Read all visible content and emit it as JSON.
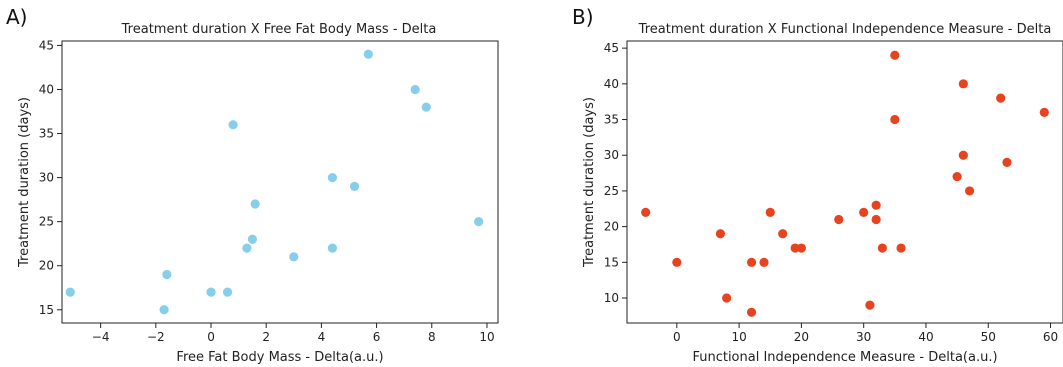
{
  "chart_data": [
    {
      "panel_label": "A)",
      "type": "scatter",
      "title": "Treatment duration X Free Fat Body Mass - Delta",
      "xlabel": "Free Fat Body Mass - Delta(a.u.)",
      "ylabel": "Treatment duration (days)",
      "xlim": [
        -5.4,
        10.4
      ],
      "ylim": [
        13.5,
        45.5
      ],
      "xticks": [
        -4,
        -2,
        0,
        2,
        4,
        6,
        8,
        10
      ],
      "yticks": [
        15,
        20,
        25,
        30,
        35,
        40,
        45
      ],
      "color": "#87ceeb",
      "grid": false,
      "x": [
        -5.1,
        -1.7,
        -1.6,
        0.0,
        0.6,
        0.8,
        1.3,
        1.5,
        1.6,
        3.0,
        4.4,
        4.4,
        5.2,
        5.7,
        7.4,
        7.8,
        9.7
      ],
      "y": [
        17,
        15,
        19,
        17,
        17,
        36,
        22,
        23,
        27,
        21,
        30,
        22,
        29,
        44,
        40,
        38,
        25
      ]
    },
    {
      "panel_label": "B)",
      "type": "scatter",
      "title": "Treatment duration X Functional Independence Measure - Delta",
      "xlabel": "Functional Independence Measure - Delta(a.u.)",
      "ylabel": "Treatment duration (days)",
      "xlim": [
        -8,
        62
      ],
      "ylim": [
        6.5,
        46
      ],
      "xticks": [
        0,
        10,
        20,
        30,
        40,
        50,
        60
      ],
      "yticks": [
        10,
        15,
        20,
        25,
        30,
        35,
        40,
        45
      ],
      "color": "#e8431f",
      "grid": false,
      "x": [
        -5,
        0,
        7,
        8,
        12,
        12,
        14,
        15,
        17,
        19,
        20,
        26,
        30,
        31,
        32,
        32,
        33,
        35,
        35,
        36,
        45,
        46,
        46,
        47,
        52,
        53,
        59
      ],
      "y": [
        22,
        15,
        19,
        10,
        8,
        15,
        15,
        22,
        19,
        17,
        17,
        21,
        22,
        9,
        23,
        21,
        17,
        44,
        35,
        17,
        27,
        40,
        30,
        25,
        38,
        29,
        36
      ]
    }
  ]
}
